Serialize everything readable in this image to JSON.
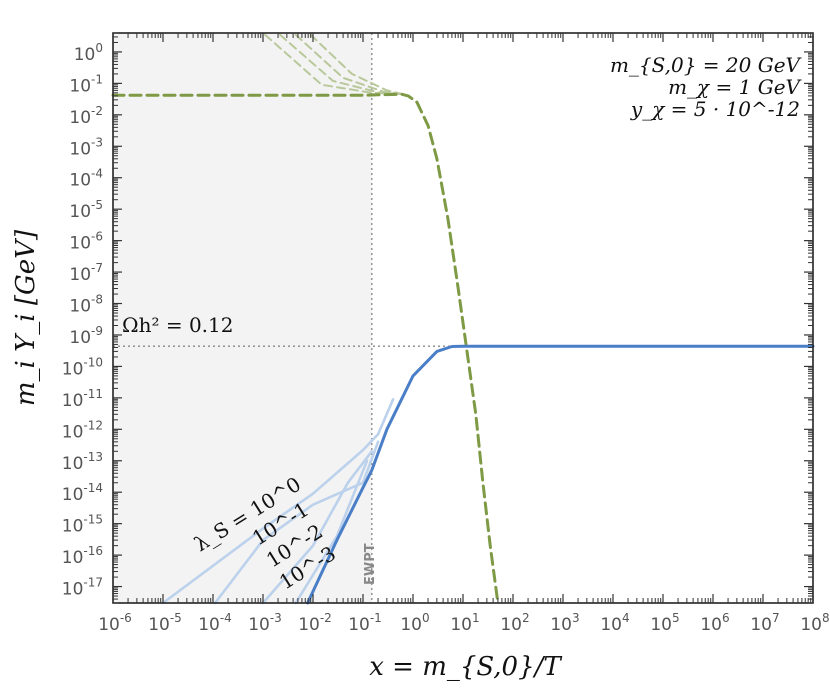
{
  "chart_data": {
    "type": "line",
    "x_scale": "log",
    "y_scale": "log",
    "xlabel": "x = m_{S,0}/T",
    "ylabel": "m_i Y_i [GeV]",
    "xlim": [
      1e-06,
      100000000.0
    ],
    "ylim": [
      3e-18,
      4
    ],
    "x_ticks": [
      "10^-6",
      "10^-5",
      "10^-4",
      "10^-3",
      "10^-2",
      "10^-1",
      "10^0",
      "10^1",
      "10^2",
      "10^3",
      "10^4",
      "10^5",
      "10^6",
      "10^7",
      "10^8"
    ],
    "y_ticks": [
      "10^0",
      "10^-1",
      "10^-2",
      "10^-3",
      "10^-4",
      "10^-5",
      "10^-6",
      "10^-7",
      "10^-8",
      "10^-9",
      "10^-10",
      "10^-11",
      "10^-12",
      "10^-13",
      "10^-14",
      "10^-15",
      "10^-16",
      "10^-17"
    ],
    "shaded_region": {
      "x_from": 1e-06,
      "x_to": 0.15
    },
    "vertical_line": {
      "x": 0.15,
      "label": "EWPT"
    },
    "horizontal_line": {
      "y": 4.4e-10,
      "label": "Ωh² = 0.12"
    },
    "parameters": [
      "m_{S,0} = 20 GeV",
      "m_χ = 1 GeV",
      "y_χ = 5 · 10^-12"
    ],
    "lambda_labels": [
      "λ_S = 10^0",
      "10^-1",
      "10^-2",
      "10^-3"
    ],
    "colors": {
      "green": "#7e9a45",
      "green_faint": "#b9c89a",
      "blue": "#4a7fc8",
      "blue_faint": "#bcd1ec",
      "shade": "#f3f3f3"
    },
    "series": [
      {
        "style": "dashed-green",
        "points": [
          [
            1e-06,
            0.042
          ],
          [
            0.1,
            0.042
          ],
          [
            0.3,
            0.044
          ],
          [
            0.6,
            0.045
          ],
          [
            0.8,
            0.04
          ],
          [
            1.2,
            0.025
          ],
          [
            2,
            0.0045
          ],
          [
            3,
            0.0004
          ],
          [
            5,
            5e-06
          ],
          [
            8,
            3e-08
          ],
          [
            12,
            3e-10
          ],
          [
            18,
            3e-12
          ],
          [
            25,
            2e-14
          ],
          [
            35,
            2e-16
          ],
          [
            50,
            3e-18
          ]
        ]
      },
      {
        "style": "faint-green",
        "points": [
          [
            0.009,
            3.5
          ],
          [
            0.06,
            0.2
          ],
          [
            0.3,
            0.06
          ],
          [
            0.6,
            0.046
          ]
        ]
      },
      {
        "style": "faint-green",
        "points": [
          [
            0.0045,
            3.5
          ],
          [
            0.04,
            0.15
          ],
          [
            0.25,
            0.055
          ],
          [
            0.6,
            0.046
          ]
        ]
      },
      {
        "style": "faint-green",
        "points": [
          [
            0.0022,
            3.5
          ],
          [
            0.025,
            0.12
          ],
          [
            0.2,
            0.052
          ],
          [
            0.6,
            0.046
          ]
        ]
      },
      {
        "style": "faint-green",
        "points": [
          [
            0.0011,
            3.5
          ],
          [
            0.015,
            0.09
          ],
          [
            0.15,
            0.05
          ],
          [
            0.6,
            0.046
          ]
        ]
      },
      {
        "style": "faint-blue",
        "points": [
          [
            1e-05,
            3e-18
          ],
          [
            0.001,
            7e-16
          ],
          [
            0.01,
            9e-15
          ],
          [
            0.1,
            2.2e-13
          ],
          [
            0.2,
            7e-13
          ],
          [
            0.4,
            9e-12
          ]
        ]
      },
      {
        "style": "faint-blue",
        "points": [
          [
            0.00011,
            3e-18
          ],
          [
            0.001,
            3e-16
          ],
          [
            0.01,
            4e-15
          ],
          [
            0.1,
            2e-14
          ],
          [
            0.2,
            4e-13
          ]
        ]
      },
      {
        "style": "faint-blue",
        "points": [
          [
            0.001,
            3e-18
          ],
          [
            0.01,
            2e-16
          ],
          [
            0.05,
            2e-14
          ],
          [
            0.15,
            2e-13
          ]
        ]
      },
      {
        "style": "faint-blue",
        "points": [
          [
            0.0045,
            3e-18
          ],
          [
            0.03,
            4e-16
          ],
          [
            0.12,
            1e-13
          ]
        ]
      },
      {
        "style": "solid-blue",
        "points": [
          [
            0.0078,
            3e-18
          ],
          [
            0.03,
            3e-16
          ],
          [
            0.1,
            1.4e-14
          ],
          [
            0.15,
            5e-14
          ],
          [
            0.3,
            1e-12
          ],
          [
            1,
            5e-11
          ],
          [
            3,
            3e-10
          ],
          [
            6,
            4.3e-10
          ],
          [
            10,
            4.4e-10
          ],
          [
            100000000.0,
            4.4e-10
          ]
        ]
      }
    ]
  }
}
